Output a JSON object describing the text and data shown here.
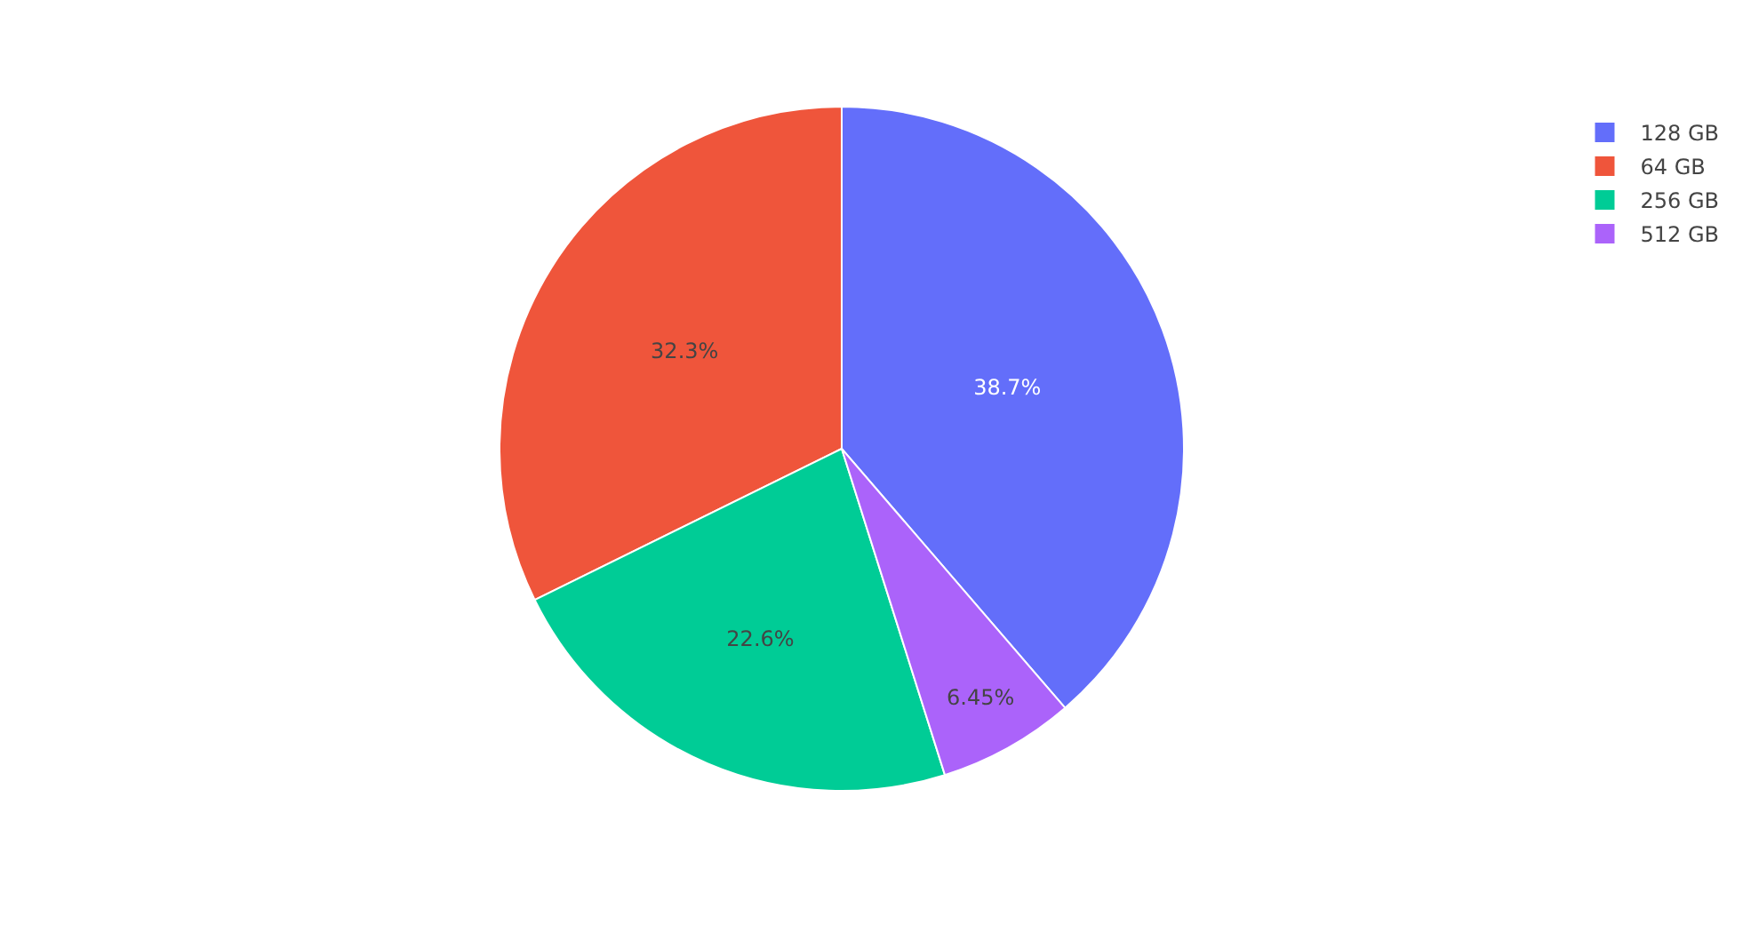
{
  "chart_data": {
    "type": "pie",
    "categories": [
      "128 GB",
      "64 GB",
      "256 GB",
      "512 GB"
    ],
    "values": [
      38.7,
      32.3,
      22.6,
      6.45
    ],
    "colors": [
      "#636efa",
      "#ef553b",
      "#00cc96",
      "#ab63fa"
    ],
    "value_labels": [
      "38.7%",
      "32.3%",
      "22.6%",
      "6.45%"
    ],
    "legend": "top right"
  }
}
